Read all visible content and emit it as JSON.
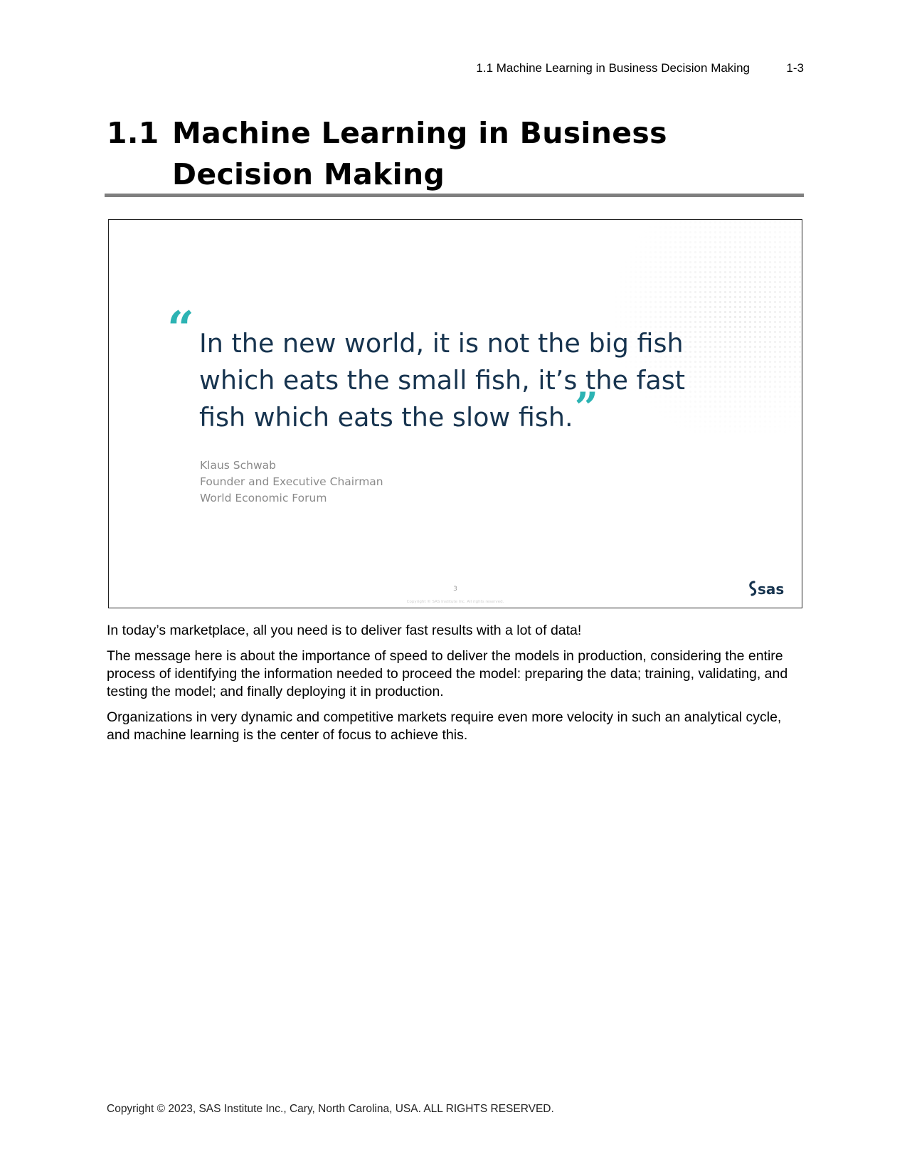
{
  "header": {
    "section": "1.1  Machine Learning in Business Decision Making",
    "page": "1-3"
  },
  "title": {
    "number": "1.1",
    "text": "Machine Learning in Business Decision Making"
  },
  "slide": {
    "open_quote": "“",
    "quote": "In the new world, it is not the big fish which eats the small fish, it’s the fast fish which eats the slow fish.",
    "close_quote": "”",
    "attribution": [
      "Klaus Schwab",
      "Founder and Executive Chairman",
      "World Economic Forum"
    ],
    "slide_number": "3",
    "slide_copyright": "Copyright © SAS Institute Inc. All rights reserved.",
    "logo": "sas",
    "accent_color": "#2cb3b3",
    "quote_color": "#17344f"
  },
  "body": {
    "paragraphs": [
      "In today’s marketplace, all you need is to deliver fast results with a lot of data!",
      "The message here is about the importance of speed to deliver the models in production, considering the entire process of identifying the information needed to proceed the model: preparing the data; training, validating, and testing the model; and finally deploying it in production.",
      "Organizations in very dynamic and competitive markets require even more velocity in such an analytical cycle, and machine learning is the center of focus to achieve this."
    ]
  },
  "footer": {
    "copyright": "Copyright © 2023, SAS Institute Inc., Cary, North Carolina, USA. ALL RIGHTS RESERVED."
  }
}
